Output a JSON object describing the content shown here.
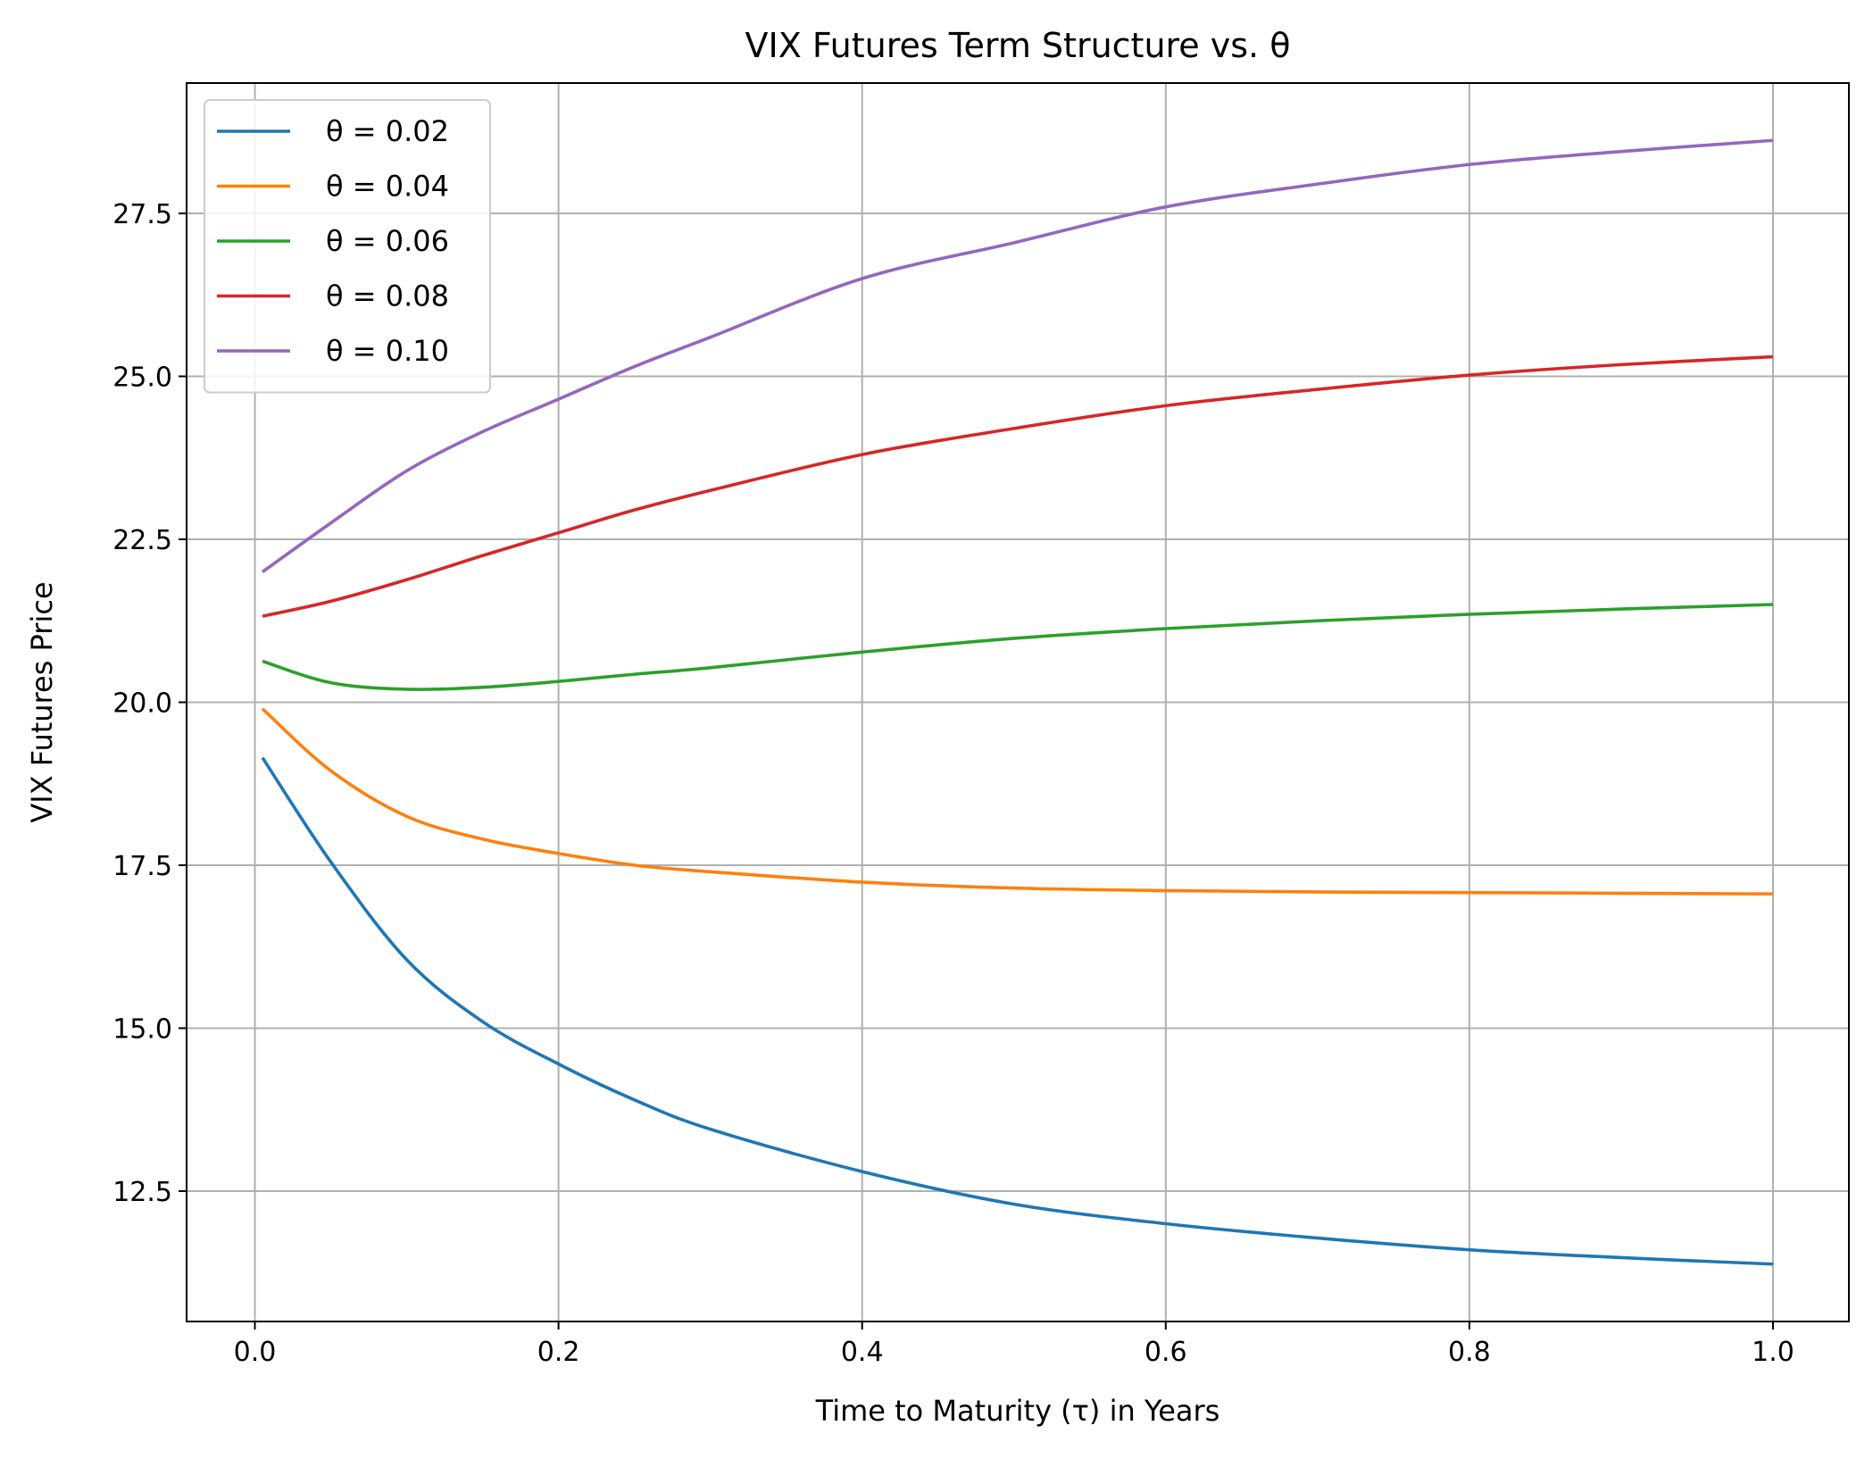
{
  "chart_data": {
    "type": "line",
    "title": "VIX Futures Term Structure vs. θ",
    "xlabel": "Time to Maturity (τ) in Years",
    "ylabel": "VIX Futures Price",
    "xlim": [
      -0.045,
      1.05
    ],
    "ylim": [
      10.5,
      29.5
    ],
    "xticks": [
      0.0,
      0.2,
      0.4,
      0.6,
      0.8,
      1.0
    ],
    "xtick_labels": [
      "0.0",
      "0.2",
      "0.4",
      "0.6",
      "0.8",
      "1.0"
    ],
    "yticks": [
      12.5,
      15.0,
      17.5,
      20.0,
      22.5,
      25.0,
      27.5
    ],
    "ytick_labels": [
      "12.5",
      "15.0",
      "17.5",
      "20.0",
      "22.5",
      "25.0",
      "27.5"
    ],
    "grid": true,
    "legend_position": "top-left",
    "x": [
      0.005,
      0.05,
      0.1,
      0.15,
      0.2,
      0.25,
      0.3,
      0.4,
      0.5,
      0.6,
      0.7,
      0.8,
      0.9,
      1.0
    ],
    "series": [
      {
        "name": "θ = 0.02",
        "color": "#1f77b4",
        "values": [
          19.15,
          17.55,
          16.05,
          15.1,
          14.45,
          13.9,
          13.45,
          12.8,
          12.3,
          12.0,
          11.78,
          11.6,
          11.48,
          11.38
        ]
      },
      {
        "name": "θ = 0.04",
        "color": "#ff7f0e",
        "values": [
          19.9,
          18.95,
          18.25,
          17.9,
          17.68,
          17.5,
          17.4,
          17.24,
          17.15,
          17.11,
          17.09,
          17.08,
          17.07,
          17.06
        ]
      },
      {
        "name": "θ = 0.06",
        "color": "#2ca02c",
        "values": [
          20.63,
          20.3,
          20.2,
          20.23,
          20.32,
          20.43,
          20.53,
          20.77,
          20.98,
          21.13,
          21.25,
          21.35,
          21.43,
          21.5
        ]
      },
      {
        "name": "θ = 0.08",
        "color": "#d62728",
        "values": [
          21.32,
          21.55,
          21.88,
          22.25,
          22.6,
          22.95,
          23.25,
          23.8,
          24.2,
          24.55,
          24.8,
          25.02,
          25.18,
          25.3
        ]
      },
      {
        "name": "θ = 0.10",
        "color": "#9467bd",
        "values": [
          22.0,
          22.75,
          23.55,
          24.15,
          24.65,
          25.15,
          25.6,
          26.5,
          27.05,
          27.6,
          27.95,
          28.25,
          28.45,
          28.62
        ]
      }
    ]
  }
}
